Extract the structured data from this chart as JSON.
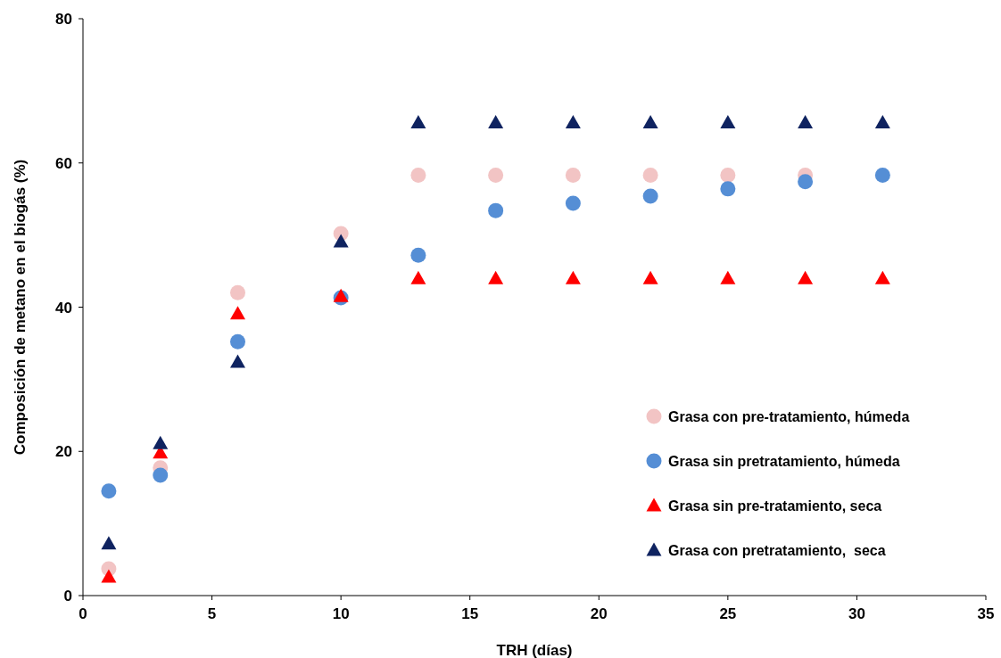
{
  "chart_data": {
    "type": "scatter",
    "xlabel": "TRH (días)",
    "ylabel": "Composición de metano en el biogás (%)",
    "x": [
      1,
      3,
      6,
      10,
      13,
      16,
      19,
      22,
      25,
      28,
      31
    ],
    "xlim": [
      0,
      35
    ],
    "xticks": [
      0,
      5,
      10,
      15,
      20,
      25,
      30,
      35
    ],
    "ylim": [
      0,
      80
    ],
    "yticks": [
      0,
      20,
      40,
      60,
      80
    ],
    "grid": false,
    "legend": "right",
    "series": [
      {
        "name": "Grasa con pre-tratamiento, húmeda",
        "color": "#f2c4c4",
        "marker": "circle",
        "values": [
          3.7,
          17.7,
          42.0,
          50.2,
          58.3,
          58.3,
          58.3,
          58.3,
          58.3,
          58.3,
          null
        ]
      },
      {
        "name": "Grasa sin pretratamiento, húmeda",
        "color": "#558ed5",
        "marker": "circle",
        "values": [
          14.5,
          16.7,
          35.2,
          41.3,
          47.2,
          53.4,
          54.4,
          55.4,
          56.4,
          57.4,
          58.3
        ]
      },
      {
        "name": "Grasa sin pre-tratamiento, seca",
        "color": "#ff0000",
        "marker": "triangle",
        "values": [
          2.6,
          19.8,
          39.1,
          41.5,
          44.0,
          44.0,
          44.0,
          44.0,
          44.0,
          44.0,
          44.0
        ]
      },
      {
        "name": "Grasa con pretratamiento,  seca",
        "color": "#0f2360",
        "marker": "triangle",
        "values": [
          7.2,
          21.1,
          32.4,
          49.1,
          65.6,
          65.6,
          65.6,
          65.6,
          65.6,
          65.6,
          65.6
        ]
      }
    ]
  }
}
